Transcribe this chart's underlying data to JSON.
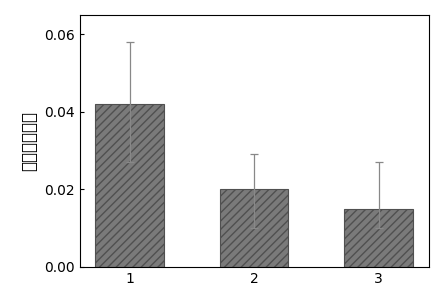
{
  "categories": [
    "1",
    "2",
    "3"
  ],
  "values": [
    0.042,
    0.02,
    0.015
  ],
  "errors_upper": [
    0.016,
    0.009,
    0.012
  ],
  "errors_lower": [
    0.015,
    0.01,
    0.005
  ],
  "bar_color": "#7a7a7a",
  "hatch": "////",
  "ylabel": "平均摩擦系数",
  "ylim": [
    0,
    0.065
  ],
  "yticks": [
    0.0,
    0.02,
    0.04,
    0.06
  ],
  "bar_width": 0.55,
  "edgecolor": "#505050",
  "background_color": "#ffffff",
  "capsize": 3,
  "error_color": "#888888",
  "tick_fontsize": 10,
  "ylabel_fontsize": 12
}
